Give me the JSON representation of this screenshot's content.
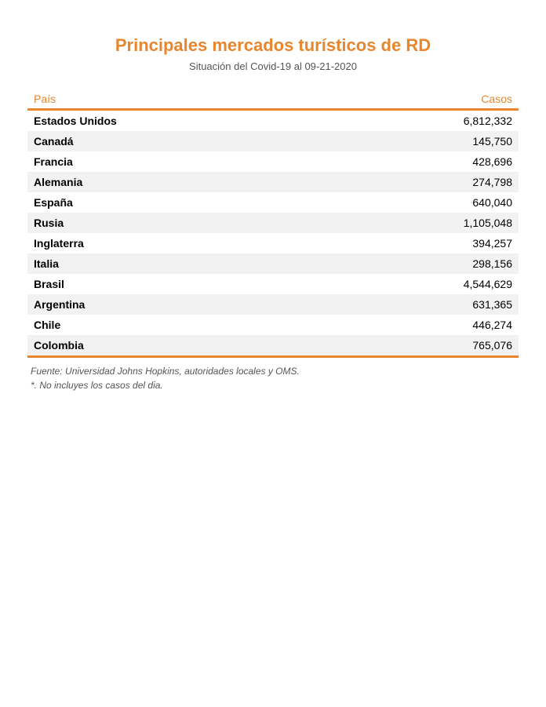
{
  "title": "Principales mercados turísticos de RD",
  "subtitle": "Situación del Covid-19 al 09-21-2020",
  "table": {
    "type": "table",
    "accent_color": "#e8862e",
    "header_text_color": "#e8862e",
    "row_alt_bg": "#f2f2f2",
    "row_bg": "#ffffff",
    "border_color": "#e8862e",
    "columns": [
      {
        "key": "country",
        "label": "País",
        "align": "left",
        "weight": "bold"
      },
      {
        "key": "cases",
        "label": "Casos",
        "align": "right",
        "weight": "normal"
      }
    ],
    "rows": [
      {
        "country": "Estados Unidos",
        "cases": "6,812,332"
      },
      {
        "country": "Canadá",
        "cases": "145,750"
      },
      {
        "country": "Francia",
        "cases": "428,696"
      },
      {
        "country": "Alemania",
        "cases": "274,798"
      },
      {
        "country": "España",
        "cases": "640,040"
      },
      {
        "country": "Rusia",
        "cases": "1,105,048"
      },
      {
        "country": "Inglaterra",
        "cases": "394,257"
      },
      {
        "country": "Italia",
        "cases": "298,156"
      },
      {
        "country": "Brasil",
        "cases": "4,544,629"
      },
      {
        "country": "Argentina",
        "cases": "631,365"
      },
      {
        "country": "Chile",
        "cases": "446,274"
      },
      {
        "country": "Colombia",
        "cases": "765,076"
      }
    ]
  },
  "source": "Fuente: Universidad Johns Hopkins, autoridades locales y OMS.",
  "note": "*. No incluyes los casos del dia.",
  "typography": {
    "title_fontsize": 22,
    "subtitle_fontsize": 13,
    "cell_fontsize": 14,
    "footer_fontsize": 12,
    "title_color": "#e8862e",
    "subtitle_color": "#555555",
    "footer_color": "#555555"
  }
}
